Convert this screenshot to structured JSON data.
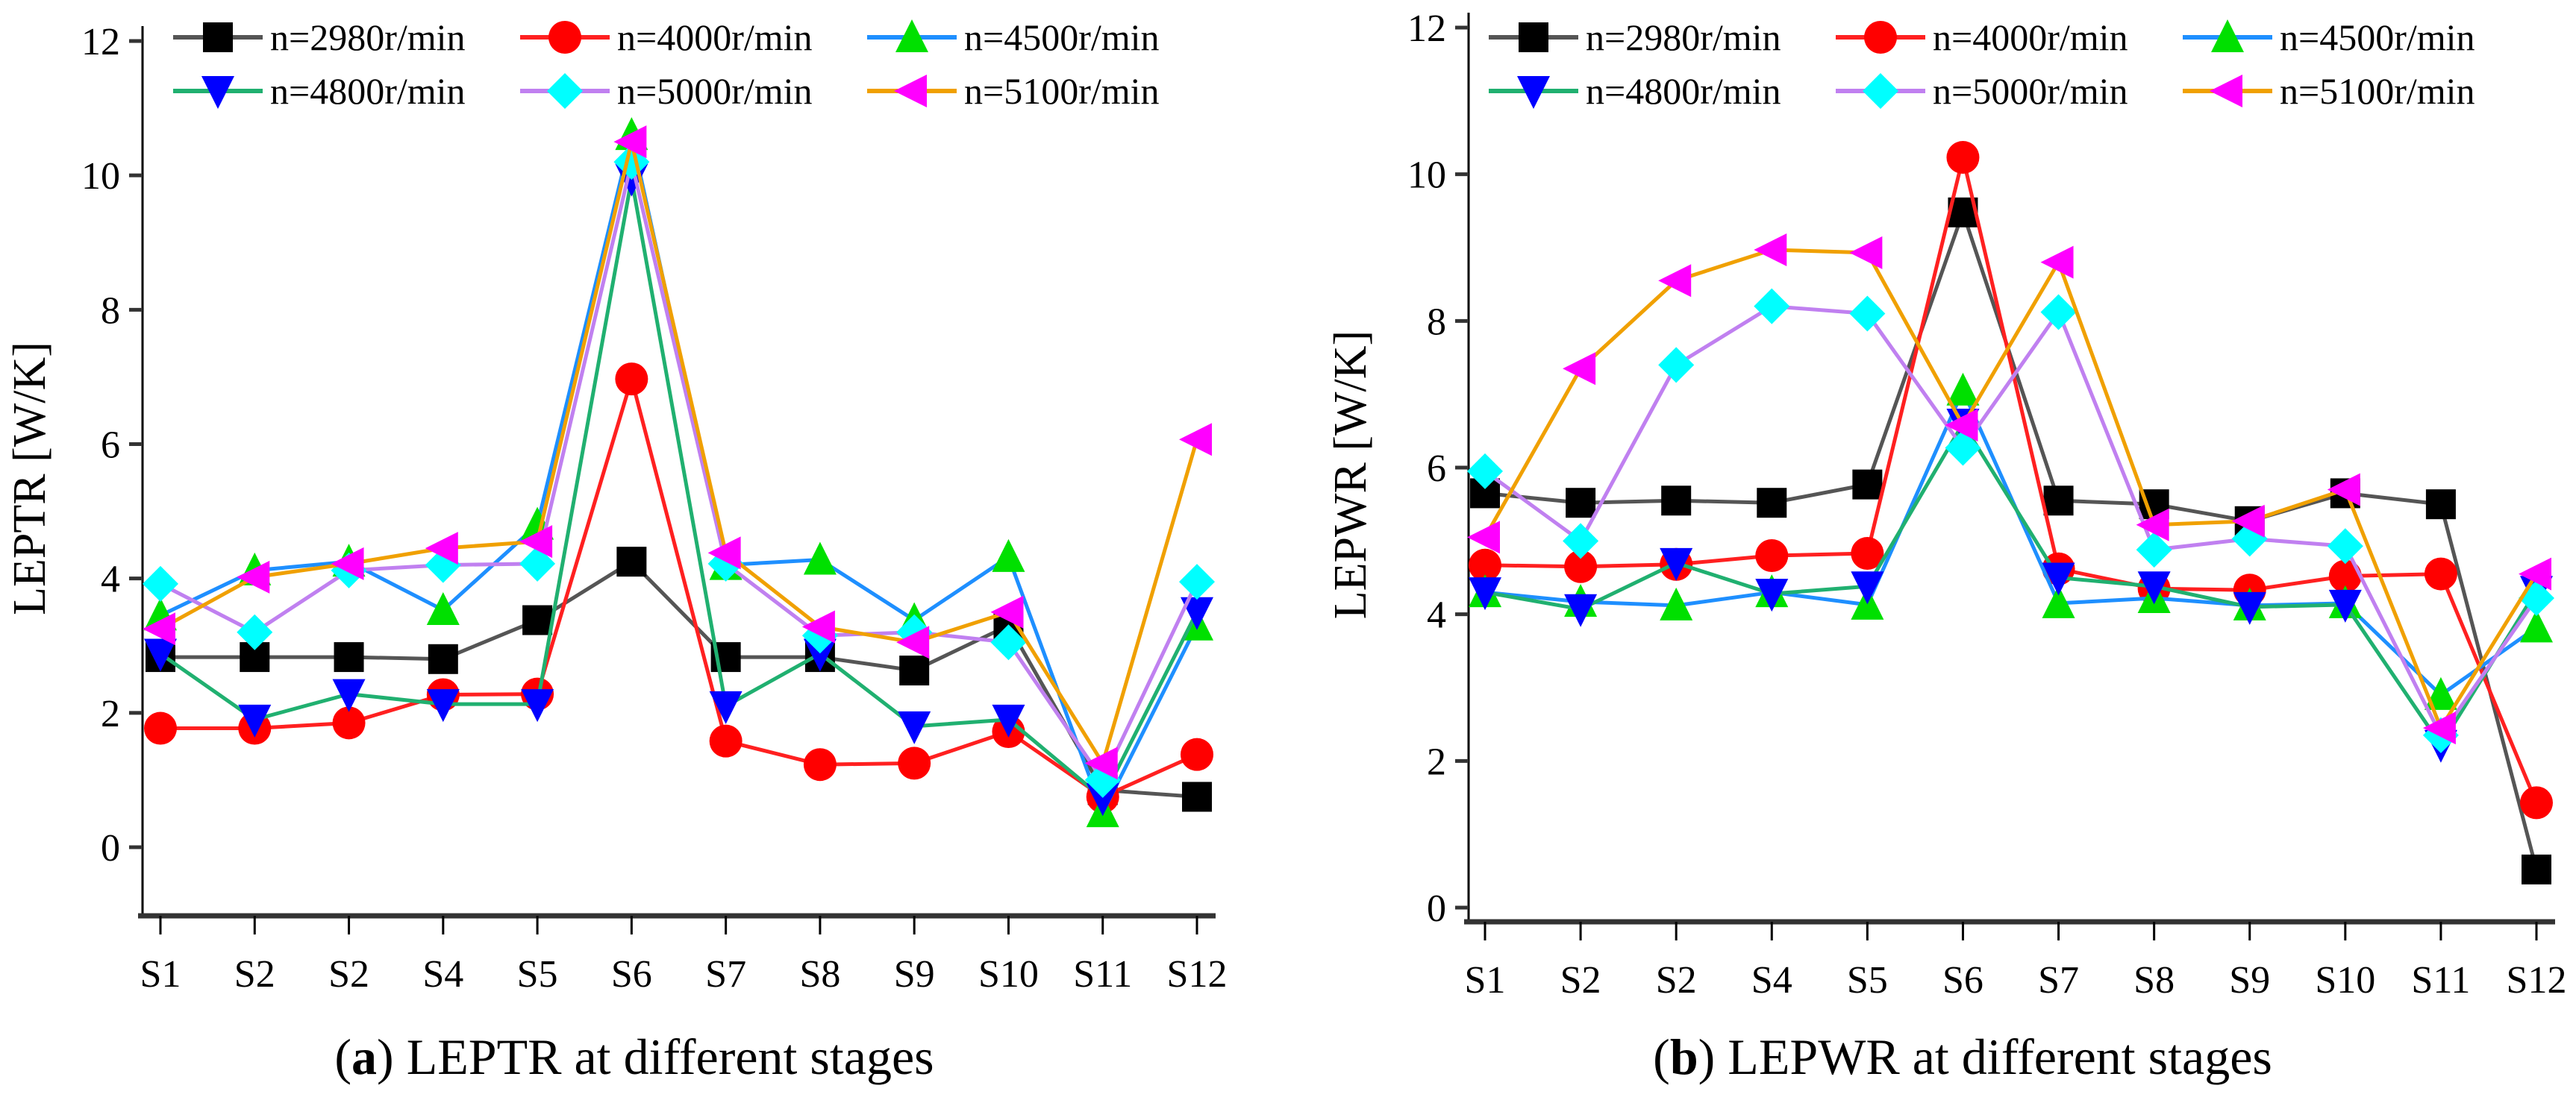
{
  "chart_data": [
    {
      "type": "line",
      "title": "",
      "caption_letter": "a",
      "caption_text": " LEPTR at different stages",
      "xlabel": "",
      "ylabel": "LEPTR [W/K]",
      "ylim": [
        -1,
        12
      ],
      "yticks": [
        0,
        2,
        4,
        6,
        8,
        10,
        12
      ],
      "categories": [
        "S1",
        "S2",
        "S2",
        "S4",
        "S5",
        "S6",
        "S7",
        "S8",
        "S9",
        "S10",
        "S11",
        "S12"
      ],
      "legend_placement": "top",
      "series": [
        {
          "name": "n=2980r/min",
          "line_color": "#555555",
          "marker_color": "#000000",
          "marker": "square",
          "values": [
            2.83,
            2.83,
            2.83,
            2.8,
            3.38,
            4.25,
            2.83,
            2.83,
            2.63,
            3.3,
            0.85,
            0.75
          ]
        },
        {
          "name": "n=4000r/min",
          "line_color": "#FF2020",
          "marker_color": "#FF0000",
          "marker": "circle",
          "values": [
            1.77,
            1.77,
            1.85,
            2.27,
            2.28,
            6.97,
            1.58,
            1.23,
            1.25,
            1.72,
            0.75,
            1.38
          ]
        },
        {
          "name": "n=4500r/min",
          "line_color": "#1E8FFF",
          "marker_color": "#00E000",
          "marker": "triangle-up",
          "values": [
            3.45,
            4.12,
            4.25,
            3.53,
            4.8,
            10.6,
            4.2,
            4.28,
            3.38,
            4.32,
            0.52,
            3.3
          ]
        },
        {
          "name": "n=4800r/min",
          "line_color": "#20B070",
          "marker_color": "#0000FF",
          "marker": "triangle-down",
          "values": [
            2.88,
            1.9,
            2.28,
            2.13,
            2.13,
            9.95,
            2.1,
            2.88,
            1.8,
            1.9,
            0.73,
            3.5
          ]
        },
        {
          "name": "n=5000r/min",
          "line_color": "#C080F0",
          "marker_color": "#00FFFF",
          "marker": "diamond",
          "values": [
            3.92,
            3.2,
            4.12,
            4.2,
            4.22,
            10.2,
            4.22,
            3.15,
            3.2,
            3.05,
            1.0,
            3.95
          ]
        },
        {
          "name": "n=5100r/min",
          "line_color": "#F0A000",
          "marker_color": "#FF00FF",
          "marker": "triangle-left",
          "values": [
            3.25,
            4.02,
            4.22,
            4.45,
            4.55,
            10.5,
            4.38,
            3.28,
            3.05,
            3.5,
            1.25,
            6.07
          ]
        }
      ]
    },
    {
      "type": "line",
      "title": "",
      "caption_letter": "b",
      "caption_text": " LEPWR at different stages",
      "xlabel": "",
      "ylabel": "LEPWR [W/K]",
      "ylim": [
        0,
        12
      ],
      "yticks": [
        0,
        2,
        4,
        6,
        8,
        10,
        12
      ],
      "categories": [
        "S1",
        "S2",
        "S2",
        "S4",
        "S5",
        "S6",
        "S7",
        "S8",
        "S9",
        "S10",
        "S11",
        "S12"
      ],
      "legend_placement": "top",
      "series": [
        {
          "name": "n=2980r/min",
          "line_color": "#555555",
          "marker_color": "#000000",
          "marker": "square",
          "values": [
            5.65,
            5.52,
            5.55,
            5.52,
            5.77,
            9.48,
            5.55,
            5.5,
            5.27,
            5.65,
            5.5,
            0.52
          ]
        },
        {
          "name": "n=4000r/min",
          "line_color": "#FF2020",
          "marker_color": "#FF0000",
          "marker": "circle",
          "values": [
            4.67,
            4.65,
            4.68,
            4.8,
            4.83,
            10.23,
            4.62,
            4.35,
            4.33,
            4.52,
            4.55,
            1.43
          ]
        },
        {
          "name": "n=4500r/min",
          "line_color": "#1E8FFF",
          "marker_color": "#00E000",
          "marker": "triangle-up",
          "values": [
            4.3,
            4.17,
            4.12,
            4.3,
            4.13,
            7.05,
            4.15,
            4.22,
            4.12,
            4.15,
            2.9,
            3.82
          ]
        },
        {
          "name": "n=4800r/min",
          "line_color": "#20B070",
          "marker_color": "#0000FF",
          "marker": "triangle-down",
          "values": [
            4.3,
            4.07,
            4.7,
            4.28,
            4.38,
            6.6,
            4.5,
            4.38,
            4.1,
            4.13,
            2.22,
            4.32
          ]
        },
        {
          "name": "n=5000r/min",
          "line_color": "#C080F0",
          "marker_color": "#00FFFF",
          "marker": "diamond",
          "values": [
            5.95,
            5.0,
            7.4,
            8.2,
            8.1,
            6.27,
            8.12,
            4.88,
            5.03,
            4.93,
            2.35,
            4.22
          ]
        },
        {
          "name": "n=5100r/min",
          "line_color": "#F0A000",
          "marker_color": "#FF00FF",
          "marker": "triangle-left",
          "values": [
            5.05,
            7.35,
            8.55,
            8.97,
            8.93,
            6.58,
            8.8,
            5.22,
            5.27,
            5.7,
            2.45,
            4.55
          ]
        }
      ]
    }
  ]
}
